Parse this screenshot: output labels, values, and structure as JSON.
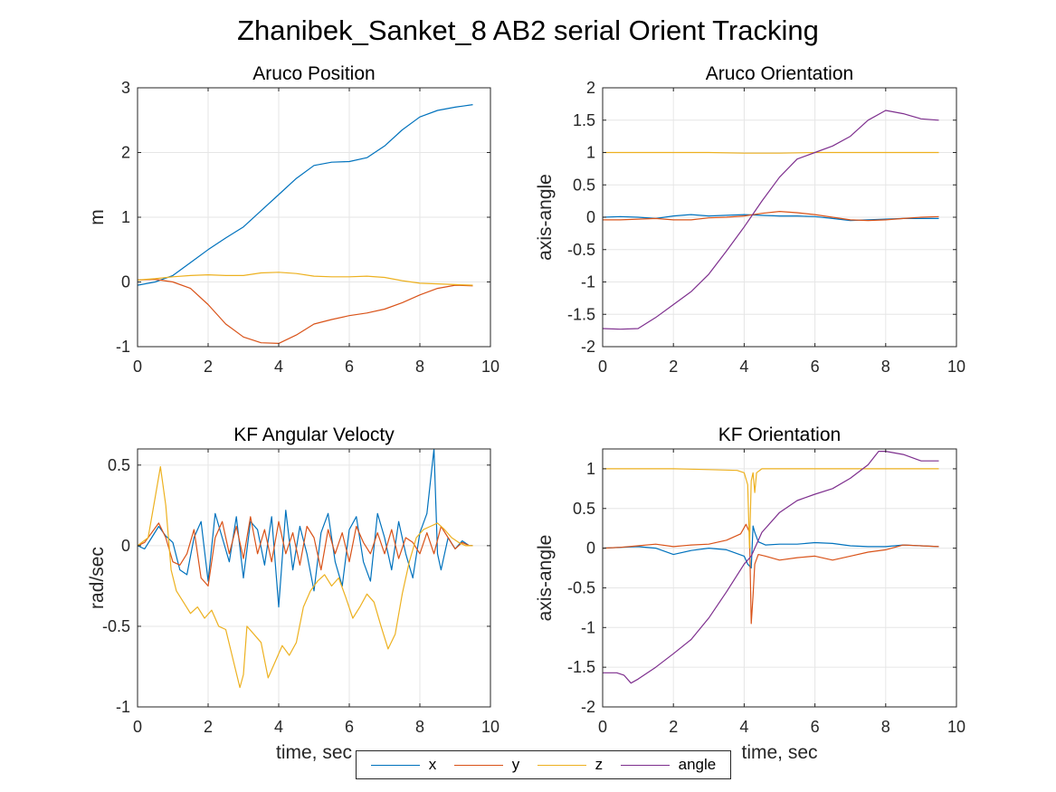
{
  "figure_title": "Zhanibek_Sanket_8 AB2 serial Orient Tracking",
  "legend": {
    "entries": [
      {
        "label": "x",
        "color": "#0072BD"
      },
      {
        "label": "y",
        "color": "#D95319"
      },
      {
        "label": "z",
        "color": "#EDB120"
      },
      {
        "label": "angle",
        "color": "#7E2F8E"
      }
    ]
  },
  "chart_data": [
    {
      "type": "line",
      "title": "Aruco Position",
      "xlabel": "",
      "ylabel": "m",
      "xlim": [
        0,
        10
      ],
      "ylim": [
        -1,
        3
      ],
      "xticks": [
        "0",
        "2",
        "4",
        "6",
        "8",
        "10"
      ],
      "yticks": [
        "-1",
        "0",
        "1",
        "2",
        "3"
      ],
      "grid": true,
      "series": [
        {
          "name": "x",
          "color": "#0072BD",
          "x": [
            0,
            0.5,
            1,
            1.5,
            2,
            2.5,
            3,
            3.5,
            4,
            4.5,
            5,
            5.5,
            6,
            6.5,
            7,
            7.5,
            8,
            8.5,
            9,
            9.5
          ],
          "y": [
            -0.05,
            0.0,
            0.1,
            0.3,
            0.5,
            0.68,
            0.85,
            1.1,
            1.35,
            1.6,
            1.8,
            1.85,
            1.86,
            1.92,
            2.1,
            2.35,
            2.55,
            2.65,
            2.7,
            2.74
          ]
        },
        {
          "name": "y",
          "color": "#D95319",
          "x": [
            0,
            0.5,
            1,
            1.5,
            2,
            2.5,
            3,
            3.5,
            4,
            4.5,
            5,
            5.5,
            6,
            6.5,
            7,
            7.5,
            8,
            8.5,
            9,
            9.5
          ],
          "y": [
            0.03,
            0.04,
            0.0,
            -0.1,
            -0.35,
            -0.65,
            -0.85,
            -0.94,
            -0.95,
            -0.82,
            -0.65,
            -0.58,
            -0.52,
            -0.48,
            -0.42,
            -0.32,
            -0.2,
            -0.1,
            -0.05,
            -0.06
          ]
        },
        {
          "name": "z",
          "color": "#EDB120",
          "x": [
            0,
            0.5,
            1,
            1.5,
            2,
            2.5,
            3,
            3.5,
            4,
            4.5,
            5,
            5.5,
            6,
            6.5,
            7,
            7.5,
            8,
            8.5,
            9,
            9.5
          ],
          "y": [
            0.03,
            0.05,
            0.08,
            0.1,
            0.11,
            0.1,
            0.1,
            0.14,
            0.15,
            0.13,
            0.09,
            0.08,
            0.08,
            0.09,
            0.07,
            0.02,
            -0.02,
            -0.03,
            -0.04,
            -0.05
          ]
        }
      ]
    },
    {
      "type": "line",
      "title": "Aruco Orientation",
      "xlabel": "",
      "ylabel": "axis-angle",
      "xlim": [
        0,
        10
      ],
      "ylim": [
        -2,
        2
      ],
      "xticks": [
        "0",
        "2",
        "4",
        "6",
        "8",
        "10"
      ],
      "yticks": [
        "-2",
        "-1.5",
        "-1",
        "-0.5",
        "0",
        "0.5",
        "1",
        "1.5",
        "2"
      ],
      "grid": true,
      "series": [
        {
          "name": "x",
          "color": "#0072BD",
          "x": [
            0,
            0.5,
            1,
            1.5,
            2,
            2.5,
            3,
            3.5,
            4,
            4.5,
            5,
            5.5,
            6,
            6.5,
            7,
            7.5,
            8,
            8.5,
            9,
            9.5
          ],
          "y": [
            0.0,
            0.01,
            0.0,
            -0.02,
            0.02,
            0.04,
            0.02,
            0.03,
            0.04,
            0.03,
            0.02,
            0.02,
            0.01,
            -0.02,
            -0.05,
            -0.04,
            -0.03,
            -0.02,
            -0.02,
            -0.02
          ]
        },
        {
          "name": "y",
          "color": "#D95319",
          "x": [
            0,
            0.5,
            1,
            1.5,
            2,
            2.5,
            3,
            3.5,
            4,
            4.5,
            5,
            5.5,
            6,
            6.5,
            7,
            7.5,
            8,
            8.5,
            9,
            9.5
          ],
          "y": [
            -0.04,
            -0.04,
            -0.03,
            -0.02,
            -0.04,
            -0.04,
            -0.01,
            0.0,
            0.02,
            0.06,
            0.09,
            0.07,
            0.04,
            0.0,
            -0.04,
            -0.05,
            -0.04,
            -0.02,
            0.0,
            0.01
          ]
        },
        {
          "name": "z",
          "color": "#EDB120",
          "x": [
            0,
            1,
            2,
            3,
            4,
            5,
            6,
            7,
            8,
            9,
            9.5
          ],
          "y": [
            1.0,
            1.0,
            1.0,
            1.0,
            0.99,
            0.99,
            1.0,
            1.0,
            1.0,
            1.0,
            1.0
          ]
        },
        {
          "name": "angle",
          "color": "#7E2F8E",
          "x": [
            0,
            0.5,
            1,
            1.5,
            2,
            2.5,
            3,
            3.5,
            4,
            4.5,
            5,
            5.5,
            6,
            6.5,
            7,
            7.5,
            8,
            8.5,
            9,
            9.5
          ],
          "y": [
            -1.72,
            -1.73,
            -1.72,
            -1.55,
            -1.35,
            -1.15,
            -0.88,
            -0.52,
            -0.15,
            0.25,
            0.62,
            0.9,
            1.0,
            1.1,
            1.25,
            1.5,
            1.65,
            1.6,
            1.52,
            1.5
          ]
        }
      ]
    },
    {
      "type": "line",
      "title": "KF Angular Velocty",
      "xlabel": "time, sec",
      "ylabel": "rad/sec",
      "xlim": [
        0,
        10
      ],
      "ylim": [
        -1,
        0.6
      ],
      "xticks": [
        "0",
        "2",
        "4",
        "6",
        "8",
        "10"
      ],
      "yticks": [
        "-1",
        "-0.5",
        "0",
        "0.5"
      ],
      "ytick_values": [
        -1,
        -0.5,
        0,
        0.5
      ],
      "grid": true,
      "series": [
        {
          "name": "x",
          "color": "#0072BD",
          "x": [
            0,
            0.2,
            0.4,
            0.6,
            0.8,
            1.0,
            1.2,
            1.4,
            1.6,
            1.8,
            2.0,
            2.2,
            2.4,
            2.6,
            2.8,
            3.0,
            3.2,
            3.4,
            3.6,
            3.8,
            4.0,
            4.2,
            4.4,
            4.6,
            4.8,
            5.0,
            5.2,
            5.4,
            5.6,
            5.8,
            6.0,
            6.2,
            6.4,
            6.6,
            6.8,
            7.0,
            7.2,
            7.4,
            7.6,
            7.8,
            8.0,
            8.2,
            8.4,
            8.5,
            8.6,
            8.8,
            9.0,
            9.2,
            9.4,
            9.5
          ],
          "y": [
            0.0,
            -0.02,
            0.05,
            0.12,
            0.06,
            0.02,
            -0.15,
            -0.18,
            0.05,
            0.15,
            -0.22,
            0.2,
            0.05,
            -0.1,
            0.18,
            -0.2,
            0.15,
            0.1,
            -0.12,
            0.18,
            -0.38,
            0.22,
            -0.15,
            0.12,
            -0.05,
            -0.28,
            0.08,
            0.2,
            -0.1,
            -0.25,
            0.1,
            0.18,
            -0.1,
            -0.22,
            0.2,
            0.05,
            -0.15,
            0.15,
            -0.05,
            -0.2,
            0.08,
            0.2,
            0.6,
            -0.05,
            -0.15,
            0.05,
            -0.02,
            0.03,
            0.0,
            0.0
          ]
        },
        {
          "name": "y",
          "color": "#D95319",
          "x": [
            0,
            0.2,
            0.4,
            0.6,
            0.8,
            1.0,
            1.2,
            1.4,
            1.6,
            1.8,
            2.0,
            2.2,
            2.4,
            2.6,
            2.8,
            3.0,
            3.2,
            3.4,
            3.6,
            3.8,
            4.0,
            4.2,
            4.4,
            4.6,
            4.8,
            5.0,
            5.2,
            5.4,
            5.6,
            5.8,
            6.0,
            6.2,
            6.4,
            6.6,
            6.8,
            7.0,
            7.2,
            7.4,
            7.6,
            7.8,
            8.0,
            8.2,
            8.4,
            8.6,
            8.8,
            9.0,
            9.2,
            9.4,
            9.5
          ],
          "y": [
            0.0,
            0.02,
            0.08,
            0.14,
            0.05,
            -0.1,
            -0.12,
            -0.05,
            0.1,
            -0.2,
            -0.25,
            0.05,
            0.15,
            -0.05,
            0.12,
            -0.08,
            0.18,
            -0.05,
            0.1,
            -0.1,
            0.15,
            -0.05,
            0.08,
            -0.12,
            0.12,
            0.05,
            -0.15,
            0.1,
            -0.05,
            0.08,
            -0.1,
            0.12,
            0.02,
            -0.05,
            0.08,
            -0.05,
            0.1,
            -0.08,
            0.05,
            0.02,
            -0.05,
            0.08,
            -0.05,
            0.12,
            0.05,
            -0.02,
            0.02,
            0.0,
            0.0
          ]
        },
        {
          "name": "z",
          "color": "#EDB120",
          "x": [
            0,
            0.3,
            0.5,
            0.65,
            0.8,
            0.95,
            1.1,
            1.3,
            1.5,
            1.7,
            1.9,
            2.1,
            2.3,
            2.5,
            2.7,
            2.9,
            3.0,
            3.1,
            3.3,
            3.5,
            3.7,
            3.9,
            4.1,
            4.3,
            4.5,
            4.7,
            4.9,
            5.1,
            5.3,
            5.5,
            5.7,
            5.9,
            6.1,
            6.3,
            6.5,
            6.7,
            6.9,
            7.1,
            7.3,
            7.5,
            7.7,
            7.9,
            8.1,
            8.3,
            8.5,
            8.7,
            8.9,
            9.1,
            9.3,
            9.5
          ],
          "y": [
            0.0,
            0.05,
            0.3,
            0.49,
            0.25,
            -0.15,
            -0.28,
            -0.35,
            -0.42,
            -0.38,
            -0.45,
            -0.4,
            -0.5,
            -0.52,
            -0.7,
            -0.88,
            -0.8,
            -0.5,
            -0.55,
            -0.6,
            -0.82,
            -0.72,
            -0.62,
            -0.68,
            -0.6,
            -0.38,
            -0.28,
            -0.22,
            -0.18,
            -0.25,
            -0.2,
            -0.32,
            -0.45,
            -0.38,
            -0.3,
            -0.35,
            -0.5,
            -0.64,
            -0.55,
            -0.3,
            -0.1,
            0.05,
            0.1,
            0.12,
            0.14,
            0.1,
            0.05,
            0.02,
            0.0,
            0.0
          ]
        }
      ]
    },
    {
      "type": "line",
      "title": "KF Orientation",
      "xlabel": "time, sec",
      "ylabel": "axis-angle",
      "xlim": [
        0,
        10
      ],
      "ylim": [
        -2,
        1.25
      ],
      "xticks": [
        "0",
        "2",
        "4",
        "6",
        "8",
        "10"
      ],
      "yticks": [
        "-2",
        "-1.5",
        "-1",
        "-0.5",
        "0",
        "0.5",
        "1"
      ],
      "ytick_values": [
        -2,
        -1.5,
        -1,
        -0.5,
        0,
        0.5,
        1
      ],
      "grid": true,
      "series": [
        {
          "name": "x",
          "color": "#0072BD",
          "x": [
            0,
            0.5,
            1,
            1.5,
            2,
            2.5,
            3,
            3.5,
            4.0,
            4.1,
            4.2,
            4.25,
            4.3,
            4.4,
            4.6,
            5,
            5.5,
            6,
            6.5,
            7,
            7.5,
            8,
            8.5,
            9,
            9.5
          ],
          "y": [
            0.0,
            0.01,
            0.02,
            0.0,
            -0.08,
            -0.03,
            0.0,
            -0.02,
            -0.1,
            -0.2,
            -0.25,
            0.28,
            0.2,
            0.08,
            0.04,
            0.05,
            0.05,
            0.07,
            0.06,
            0.03,
            0.02,
            0.02,
            0.04,
            0.03,
            0.02
          ]
        },
        {
          "name": "y",
          "color": "#D95319",
          "x": [
            0,
            0.5,
            1,
            1.5,
            2,
            2.5,
            3,
            3.5,
            3.9,
            4.05,
            4.15,
            4.2,
            4.25,
            4.3,
            4.4,
            4.6,
            5,
            5.5,
            6,
            6.5,
            7,
            7.5,
            8,
            8.5,
            9,
            9.5
          ],
          "y": [
            0.0,
            0.01,
            0.03,
            0.05,
            0.02,
            0.04,
            0.05,
            0.1,
            0.18,
            0.3,
            0.2,
            -0.95,
            -0.6,
            -0.2,
            -0.08,
            -0.1,
            -0.15,
            -0.12,
            -0.1,
            -0.15,
            -0.1,
            -0.05,
            -0.02,
            0.04,
            0.03,
            0.02
          ]
        },
        {
          "name": "z",
          "color": "#EDB120",
          "x": [
            0,
            1,
            2,
            3,
            3.8,
            4.0,
            4.1,
            4.15,
            4.2,
            4.25,
            4.3,
            4.35,
            4.5,
            5,
            6,
            7,
            8,
            9,
            9.5
          ],
          "y": [
            1.0,
            1.0,
            1.0,
            0.99,
            0.98,
            0.95,
            0.8,
            0.0,
            0.85,
            0.95,
            0.7,
            0.95,
            1.0,
            1.0,
            1.0,
            1.0,
            1.0,
            1.0,
            1.0
          ]
        },
        {
          "name": "angle",
          "color": "#7E2F8E",
          "x": [
            0,
            0.4,
            0.6,
            0.8,
            1.0,
            1.5,
            2,
            2.5,
            3,
            3.5,
            4.0,
            4.2,
            4.25,
            4.3,
            4.5,
            5,
            5.5,
            6,
            6.5,
            7,
            7.5,
            7.8,
            8.0,
            8.5,
            9,
            9.5
          ],
          "y": [
            -1.57,
            -1.57,
            -1.6,
            -1.7,
            -1.65,
            -1.5,
            -1.33,
            -1.15,
            -0.88,
            -0.55,
            -0.2,
            -0.1,
            -0.05,
            0.0,
            0.2,
            0.45,
            0.6,
            0.68,
            0.75,
            0.88,
            1.05,
            1.22,
            1.22,
            1.18,
            1.1,
            1.1
          ]
        }
      ]
    }
  ]
}
